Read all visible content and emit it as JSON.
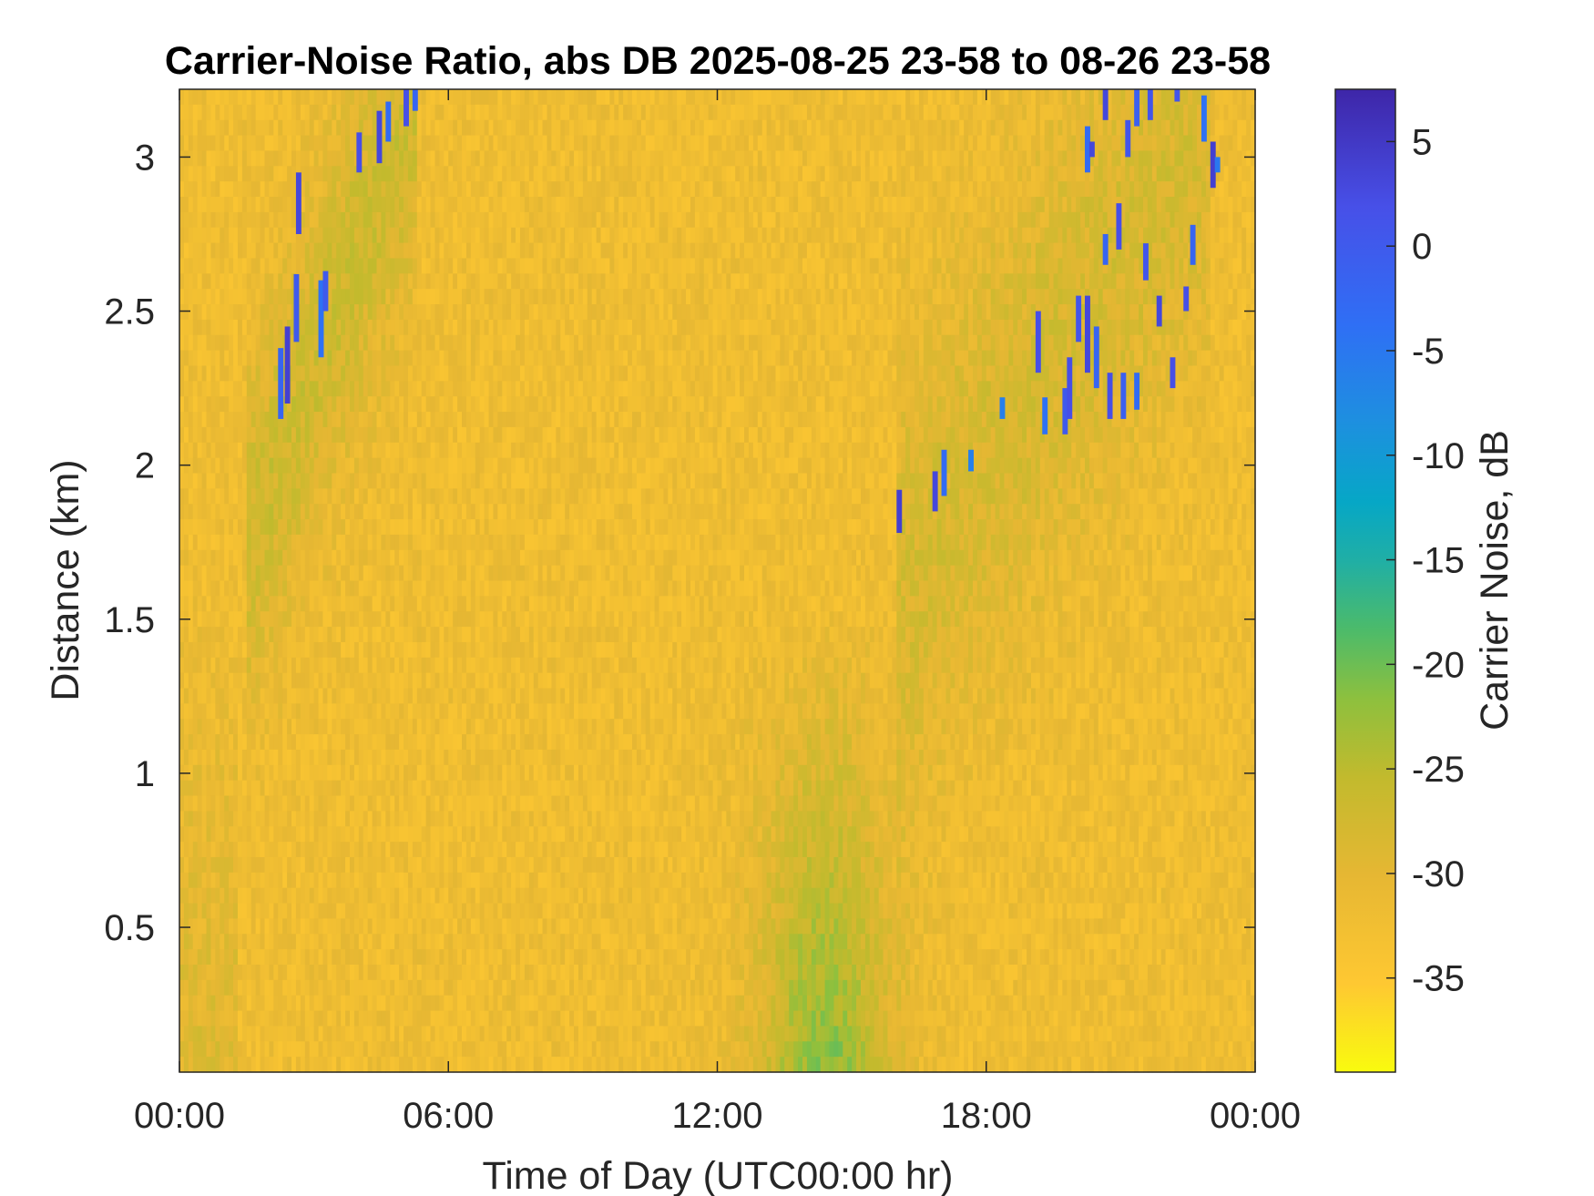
{
  "chart_data": {
    "type": "heatmap",
    "title": "Carrier-Noise Ratio, abs DB 2025-08-25 23-58 to 08-26 23-58",
    "xlabel": "Time of Day (UTC00:00 hr)",
    "ylabel": "Distance (km)",
    "x_range_hours": [
      0,
      24
    ],
    "x_ticks": [
      {
        "value": 0,
        "label": "00:00"
      },
      {
        "value": 6,
        "label": "06:00"
      },
      {
        "value": 12,
        "label": "12:00"
      },
      {
        "value": 18,
        "label": "18:00"
      },
      {
        "value": 24,
        "label": "00:00"
      }
    ],
    "ylim": [
      0.03,
      3.22
    ],
    "y_ticks": [
      {
        "value": 0.5,
        "label": "0.5"
      },
      {
        "value": 1,
        "label": "1"
      },
      {
        "value": 1.5,
        "label": "1.5"
      },
      {
        "value": 2,
        "label": "2"
      },
      {
        "value": 2.5,
        "label": "2.5"
      },
      {
        "value": 3,
        "label": "3"
      }
    ],
    "colorbar": {
      "label": "Carrier Noise, dB",
      "range": [
        -39.5,
        7.5
      ],
      "ticks": [
        {
          "value": 5,
          "label": "5"
        },
        {
          "value": 0,
          "label": "0"
        },
        {
          "value": -5,
          "label": "-5"
        },
        {
          "value": -10,
          "label": "-10"
        },
        {
          "value": -15,
          "label": "-15"
        },
        {
          "value": -20,
          "label": "-20"
        },
        {
          "value": -25,
          "label": "-25"
        },
        {
          "value": -30,
          "label": "-30"
        },
        {
          "value": -35,
          "label": "-35"
        }
      ],
      "colormap": "parula",
      "colors": [
        "#F9FB0E",
        "#FEC832",
        "#E6B733",
        "#C2BA2D",
        "#8DC03E",
        "#4CBB6A",
        "#20AFA5",
        "#06A7C6",
        "#1D90DF",
        "#2F6FF5",
        "#4750E8",
        "#3E26A8"
      ]
    },
    "background_level_db": -32,
    "features": [
      {
        "name": "morning returns",
        "time_hours": [
          1.5,
          5.3
        ],
        "distance_km": [
          1.8,
          3.22
        ],
        "min_db": 5
      },
      {
        "name": "afternoon plume",
        "time_hours": [
          12,
          16
        ],
        "distance_km": [
          0.03,
          1.5
        ],
        "min_db": -22
      },
      {
        "name": "evening returns",
        "time_hours": [
          16,
          23
        ],
        "distance_km": [
          1.6,
          3.22
        ],
        "min_db": 5
      }
    ]
  }
}
